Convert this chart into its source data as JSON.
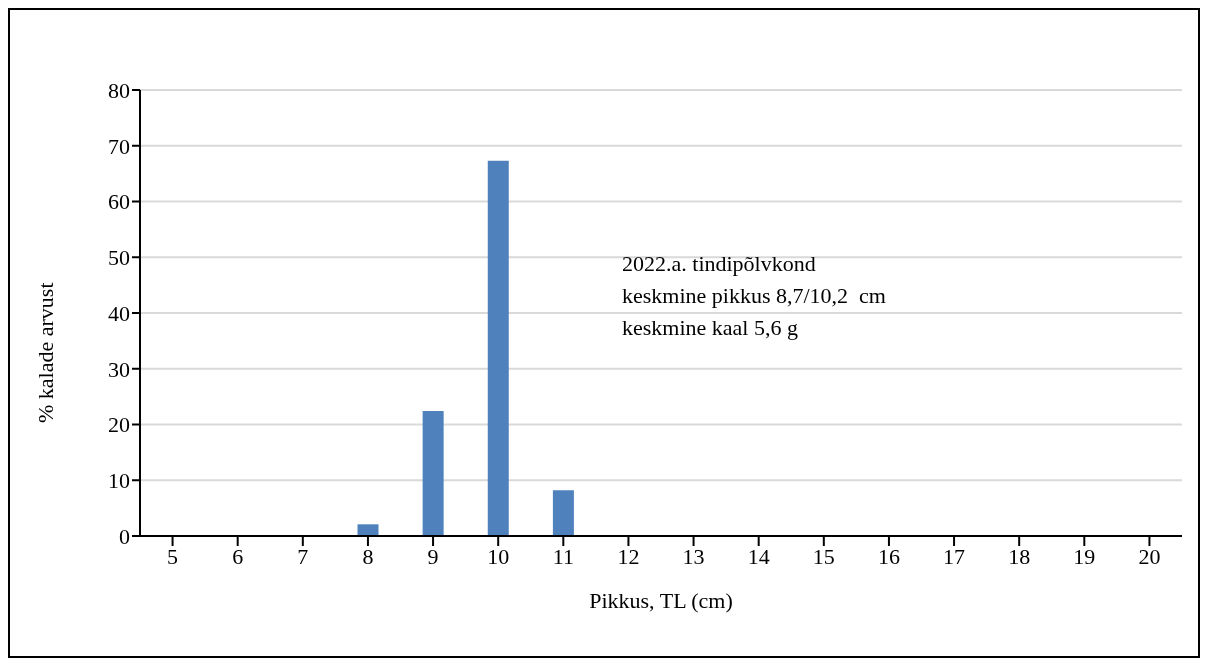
{
  "chart_data": {
    "type": "bar",
    "xlabel": "Pikkus, TL (cm)",
    "ylabel": "% kalade arvust",
    "categories": [
      "5",
      "6",
      "7",
      "8",
      "9",
      "10",
      "11",
      "12",
      "13",
      "14",
      "15",
      "16",
      "17",
      "18",
      "19",
      "20"
    ],
    "values": [
      0,
      0,
      0,
      2.1,
      22.4,
      67.3,
      8.2,
      0,
      0,
      0,
      0,
      0,
      0,
      0,
      0,
      0
    ],
    "color": "#4f81bd",
    "ylim": [
      0,
      80
    ],
    "yticks": [
      0,
      10,
      20,
      30,
      40,
      50,
      60,
      70,
      80
    ],
    "grid": "y",
    "legend": false,
    "annotations": [
      "2022.a. tindipõlvkond",
      "keskmine pikkus 8,7/10,2  cm",
      "keskmine kaal 5,6 g"
    ]
  }
}
